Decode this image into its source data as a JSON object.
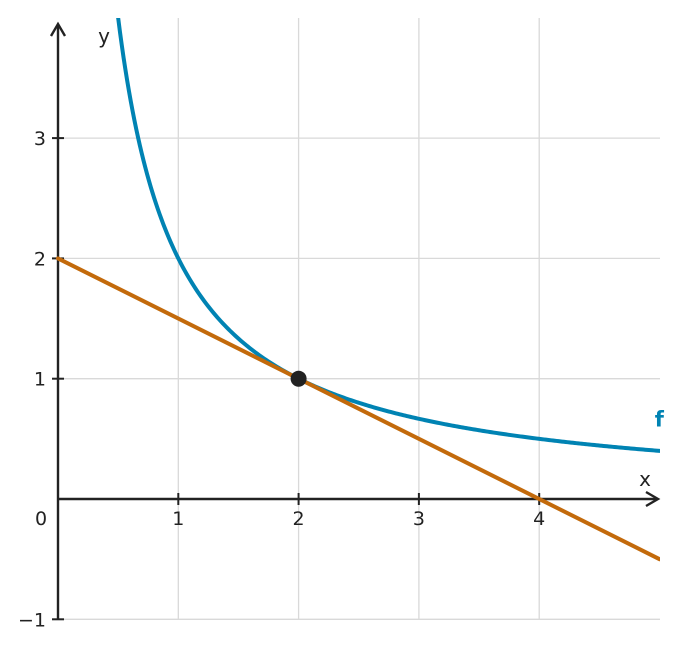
{
  "chart_data": {
    "type": "line",
    "xlabel": "x",
    "ylabel": "y",
    "xlim": [
      0,
      5
    ],
    "ylim": [
      -1,
      4
    ],
    "grid": true,
    "x_ticks": [
      {
        "value": 1,
        "label": "1"
      },
      {
        "value": 2,
        "label": "2"
      },
      {
        "value": 3,
        "label": "3"
      },
      {
        "value": 4,
        "label": "4"
      }
    ],
    "y_ticks": [
      {
        "value": -1,
        "label": "−1"
      },
      {
        "value": 1,
        "label": "1"
      },
      {
        "value": 2,
        "label": "2"
      },
      {
        "value": 3,
        "label": "3"
      }
    ],
    "origin_label": "0",
    "series": [
      {
        "name": "f",
        "color": "#0083b3",
        "x": [
          0.5,
          0.6,
          0.75,
          1,
          1.25,
          1.5,
          1.75,
          2,
          2.5,
          3,
          3.5,
          4,
          4.5,
          5
        ],
        "y": [
          4,
          3.333,
          2.667,
          2,
          1.6,
          1.333,
          1.143,
          1,
          0.8,
          0.667,
          0.571,
          0.5,
          0.444,
          0.4
        ],
        "label_at": {
          "x": 4.5,
          "y": 0.66
        }
      },
      {
        "color": "#c36a0b",
        "x": [
          0,
          5
        ],
        "y": [
          2,
          -0.5
        ]
      }
    ],
    "points": [
      {
        "x": 2,
        "y": 1,
        "color": "#222222"
      }
    ]
  }
}
